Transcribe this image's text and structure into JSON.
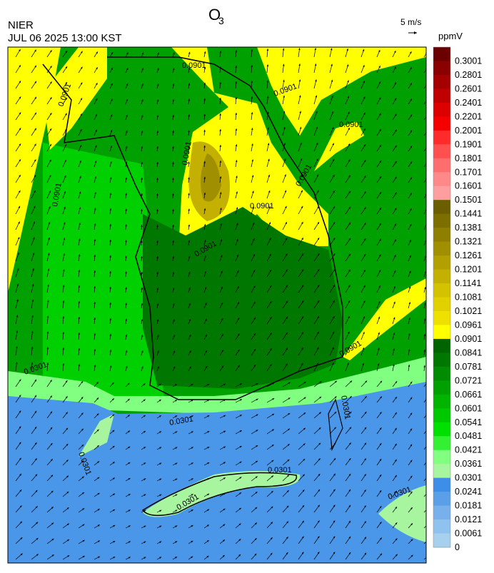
{
  "header": {
    "title": "O",
    "title_subscript": "3",
    "agency": "NIER",
    "datetime": "JUL 06 2025 13:00 KST",
    "wind_scale": "5 m/s"
  },
  "colorbar": {
    "unit": "ppmV",
    "levels": [
      {
        "label": "0.3001",
        "color": "#6b0000"
      },
      {
        "label": "0.2801",
        "color": "#8b0000"
      },
      {
        "label": "0.2601",
        "color": "#a50000"
      },
      {
        "label": "0.2401",
        "color": "#c00000"
      },
      {
        "label": "0.2201",
        "color": "#dc0000"
      },
      {
        "label": "0.2001",
        "color": "#f50000"
      },
      {
        "label": "0.1901",
        "color": "#ff2a2a"
      },
      {
        "label": "0.1801",
        "color": "#ff5050"
      },
      {
        "label": "0.1701",
        "color": "#ff6e6e"
      },
      {
        "label": "0.1601",
        "color": "#ff8888"
      },
      {
        "label": "0.1501",
        "color": "#ff9e9e"
      },
      {
        "label": "0.1441",
        "color": "#6b5e00"
      },
      {
        "label": "0.1381",
        "color": "#7d6e00"
      },
      {
        "label": "0.1321",
        "color": "#8f7f00"
      },
      {
        "label": "0.1261",
        "color": "#a08f00"
      },
      {
        "label": "0.1201",
        "color": "#b2a000"
      },
      {
        "label": "0.1141",
        "color": "#c3b000"
      },
      {
        "label": "0.1081",
        "color": "#d4c100"
      },
      {
        "label": "0.1021",
        "color": "#e3d000"
      },
      {
        "label": "0.0961",
        "color": "#f0e000"
      },
      {
        "label": "0.0901",
        "color": "#ffff00"
      },
      {
        "label": "0.0841",
        "color": "#006400"
      },
      {
        "label": "0.0781",
        "color": "#007800"
      },
      {
        "label": "0.0721",
        "color": "#008c00"
      },
      {
        "label": "0.0661",
        "color": "#00a000"
      },
      {
        "label": "0.0601",
        "color": "#00b400"
      },
      {
        "label": "0.0541",
        "color": "#00c800"
      },
      {
        "label": "0.0481",
        "color": "#00e000"
      },
      {
        "label": "0.0421",
        "color": "#33f033"
      },
      {
        "label": "0.0361",
        "color": "#80ff80"
      },
      {
        "label": "0.0301",
        "color": "#a8f5a0"
      },
      {
        "label": "0.0241",
        "color": "#3d8ee8"
      },
      {
        "label": "0.0181",
        "color": "#5a9fe8"
      },
      {
        "label": "0.0121",
        "color": "#78b0ec"
      },
      {
        "label": "0.0061",
        "color": "#90c2f0"
      },
      {
        "label": "0",
        "color": "#a6d0ee"
      }
    ]
  },
  "contour_labels": [
    "0.0901",
    "0.0301"
  ]
}
